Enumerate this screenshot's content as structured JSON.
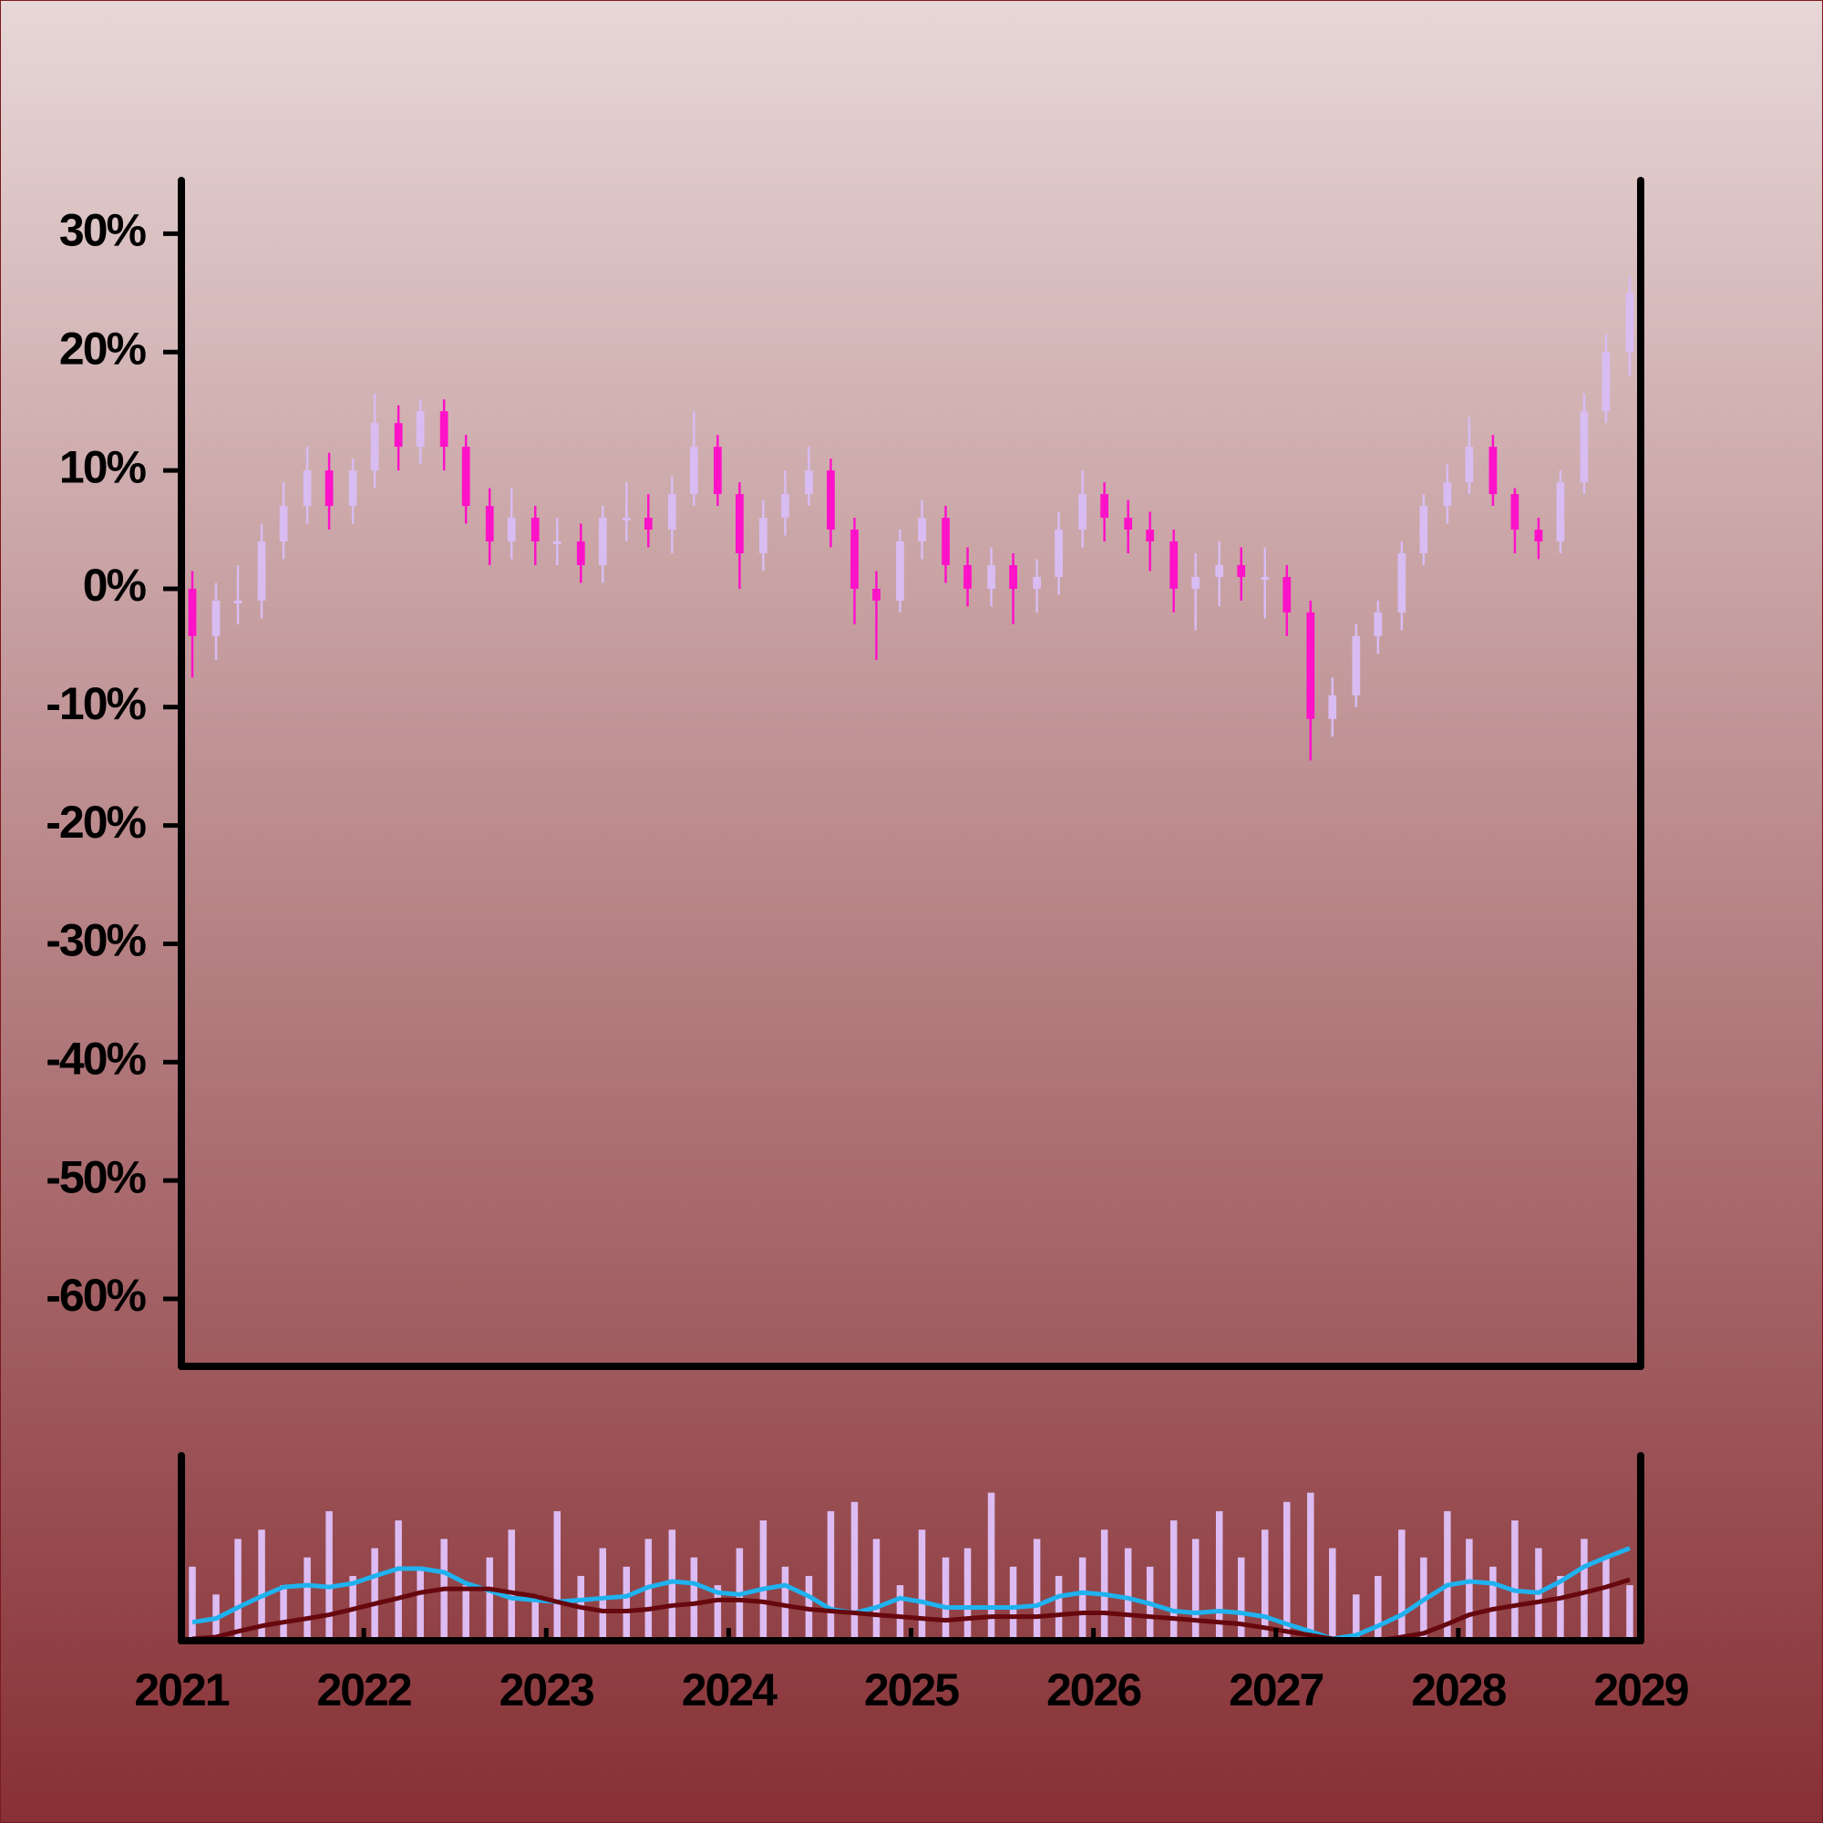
{
  "chart_data": {
    "type": "candlestick",
    "x": [
      2021.06,
      2021.19,
      2021.31,
      2021.44,
      2021.56,
      2021.69,
      2021.81,
      2021.94,
      2022.06,
      2022.19,
      2022.31,
      2022.44,
      2022.56,
      2022.69,
      2022.81,
      2022.94,
      2023.06,
      2023.19,
      2023.31,
      2023.44,
      2023.56,
      2023.69,
      2023.81,
      2023.94,
      2024.06,
      2024.19,
      2024.31,
      2024.44,
      2024.56,
      2024.69,
      2024.81,
      2024.94,
      2025.06,
      2025.19,
      2025.31,
      2025.44,
      2025.56,
      2025.69,
      2025.81,
      2025.94,
      2026.06,
      2026.19,
      2026.31,
      2026.44,
      2026.56,
      2026.69,
      2026.81,
      2026.94,
      2027.06,
      2027.19,
      2027.31,
      2027.44,
      2027.56,
      2027.69,
      2027.81,
      2027.94,
      2028.06,
      2028.19,
      2028.31,
      2028.44,
      2028.56,
      2028.69,
      2028.81,
      2028.94
    ],
    "open": [
      0,
      -4,
      -1,
      -1,
      4,
      7,
      10,
      7,
      10,
      14,
      12,
      15,
      12,
      7,
      4,
      6,
      4,
      4,
      2,
      6,
      6,
      5,
      8,
      12,
      8,
      3,
      6,
      8,
      10,
      5,
      0,
      -1,
      4,
      6,
      2,
      0,
      2,
      0,
      1,
      5,
      8,
      6,
      5,
      4,
      0,
      1,
      2,
      1,
      1,
      -2,
      -11,
      -9,
      -4,
      -2,
      3,
      7,
      9,
      12,
      8,
      5,
      4,
      9,
      15,
      20
    ],
    "high": [
      1.5,
      0.5,
      2,
      5.5,
      9,
      12,
      11.5,
      11,
      16.5,
      15.5,
      16,
      16,
      13,
      8.5,
      8.5,
      7,
      6,
      5.5,
      7,
      9,
      8,
      9.5,
      15,
      13,
      9,
      7.5,
      10,
      12,
      11,
      6,
      1.5,
      5,
      7.5,
      7,
      3.5,
      3.5,
      3,
      2.5,
      6.5,
      10,
      9,
      7.5,
      6.5,
      5,
      3,
      4,
      3.5,
      3.5,
      2,
      -1,
      -7.5,
      -3,
      -1,
      4,
      8,
      10.5,
      14.5,
      13,
      8.5,
      6,
      10,
      16.5,
      21.5,
      26.5
    ],
    "low": [
      -7.5,
      -6,
      -3,
      -2.5,
      2.5,
      5.5,
      5,
      5.5,
      8.5,
      10,
      10.5,
      10,
      5.5,
      2,
      2.5,
      2,
      2,
      0.5,
      0.5,
      4,
      3.5,
      3,
      7,
      7,
      0,
      1.5,
      4.5,
      7,
      3.5,
      -3,
      -6,
      -2,
      2.5,
      0.5,
      -1.5,
      -1.5,
      -3,
      -2,
      -0.5,
      3.5,
      4,
      3,
      1.5,
      -2,
      -3.5,
      -1.5,
      -1,
      -2.5,
      -4,
      -14.5,
      -12.5,
      -10,
      -5.5,
      -3.5,
      2,
      5.5,
      8,
      7,
      3,
      2.5,
      3,
      8,
      14,
      18
    ],
    "close": [
      -4,
      -1,
      -1,
      4,
      7,
      10,
      7,
      10,
      14,
      12,
      15,
      12,
      7,
      4,
      6,
      4,
      4,
      2,
      6,
      6,
      5,
      8,
      12,
      8,
      3,
      6,
      8,
      10,
      5,
      0,
      -1,
      4,
      6,
      2,
      0,
      2,
      0,
      1,
      5,
      8,
      6,
      5,
      4,
      0,
      1,
      2,
      1,
      1,
      -2,
      -11,
      -9,
      -4,
      -2,
      3,
      7,
      9,
      12,
      8,
      5,
      4,
      9,
      15,
      20,
      25
    ],
    "up_color": "#d8bcf2",
    "down_color": "#ff12c8",
    "xlim": [
      2021,
      2029
    ],
    "xticks": [
      2021,
      2022,
      2023,
      2024,
      2025,
      2026,
      2027,
      2028,
      2029
    ],
    "ylim": [
      -65.7,
      34.5
    ],
    "yticks": [
      {
        "value": -60,
        "label": "-60%"
      },
      {
        "value": -50,
        "label": "-50%"
      },
      {
        "value": -40,
        "label": "-40%"
      },
      {
        "value": -30,
        "label": "-30%"
      },
      {
        "value": -20,
        "label": "-20%"
      },
      {
        "value": -10,
        "label": "-10%"
      },
      {
        "value": 0,
        "label": "0%"
      },
      {
        "value": 10,
        "label": "10%"
      },
      {
        "value": 20,
        "label": "20%"
      },
      {
        "value": 30,
        "label": "30%"
      }
    ],
    "volume": {
      "color": "#dcbcf2",
      "ylim": [
        0,
        100
      ],
      "values": [
        40,
        25,
        55,
        60,
        30,
        45,
        70,
        35,
        50,
        65,
        40,
        55,
        30,
        45,
        60,
        25,
        70,
        35,
        50,
        40,
        55,
        60,
        45,
        30,
        50,
        65,
        40,
        35,
        70,
        75,
        55,
        30,
        60,
        45,
        50,
        80,
        40,
        55,
        35,
        45,
        60,
        50,
        40,
        65,
        55,
        70,
        45,
        60,
        75,
        80,
        50,
        25,
        35,
        60,
        45,
        70,
        55,
        40,
        65,
        50,
        35,
        55,
        45,
        30
      ]
    },
    "moving_averages": [
      {
        "color": "#1fb2ee",
        "values": [
          10,
          12,
          18,
          24,
          29,
          30,
          29,
          31,
          35,
          39,
          39,
          37,
          31,
          27,
          23,
          22,
          21,
          22,
          23,
          24,
          29,
          32,
          31,
          26,
          25,
          28,
          30,
          24,
          17,
          15,
          18,
          23,
          21,
          18,
          18,
          18,
          18,
          19,
          24,
          26,
          25,
          23,
          20,
          16,
          15,
          16,
          15,
          13,
          9,
          5,
          1,
          3,
          8,
          14,
          22,
          30,
          32,
          31,
          27,
          26,
          32,
          40,
          45,
          50
        ]
      },
      {
        "color": "#66080e",
        "values": [
          1,
          2,
          5,
          8,
          10,
          12,
          14,
          17,
          20,
          23,
          26,
          28,
          28,
          28,
          26,
          24,
          21,
          18,
          16,
          16,
          17,
          19,
          20,
          22,
          22,
          21,
          19,
          17,
          16,
          15,
          14,
          13,
          12,
          11,
          12,
          13,
          13,
          13,
          14,
          15,
          15,
          14,
          13,
          12,
          11,
          10,
          9,
          7,
          5,
          3,
          1,
          0,
          0,
          2,
          4,
          9,
          14,
          17,
          19,
          21,
          23,
          26,
          29,
          33
        ]
      }
    ]
  }
}
